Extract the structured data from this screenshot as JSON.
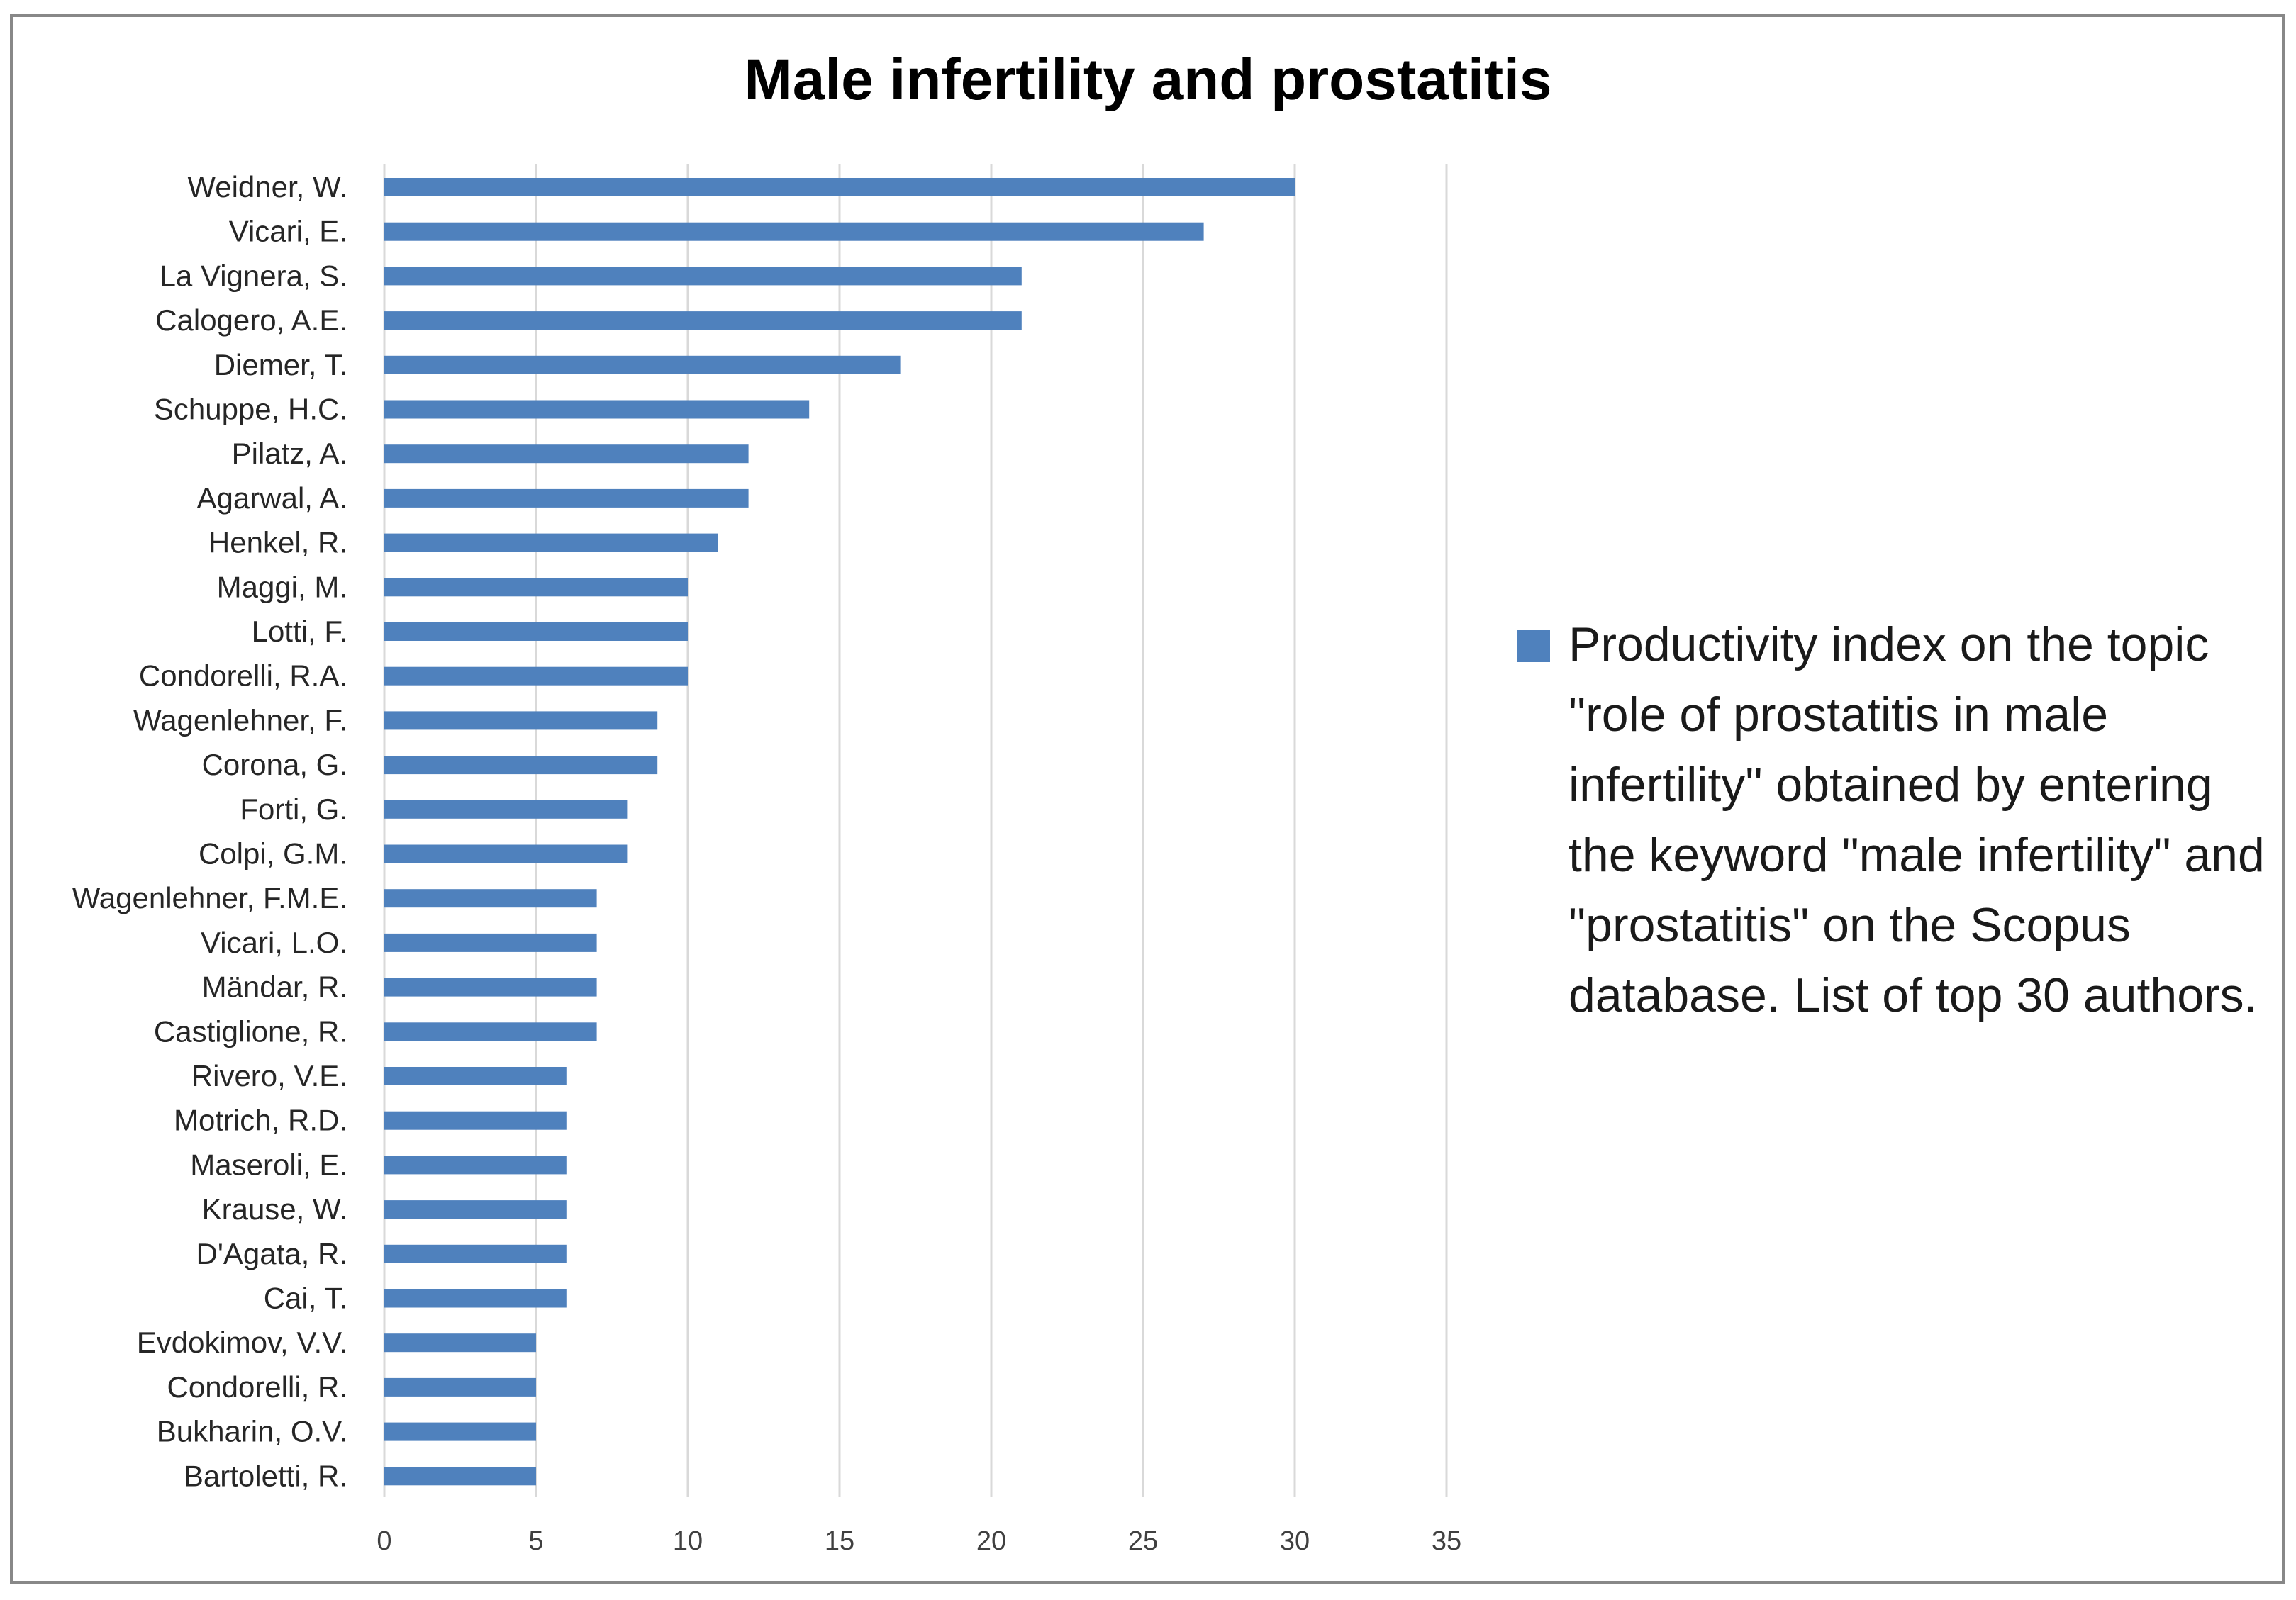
{
  "chart_data": {
    "type": "bar",
    "orientation": "horizontal",
    "title": "Male infertility and prostatitis",
    "categories": [
      "Weidner, W.",
      "Vicari, E.",
      "La Vignera, S.",
      "Calogero, A.E.",
      "Diemer, T.",
      "Schuppe, H.C.",
      "Pilatz, A.",
      "Agarwal, A.",
      "Henkel, R.",
      "Maggi, M.",
      "Lotti, F.",
      "Condorelli, R.A.",
      "Wagenlehner, F.",
      "Corona, G.",
      "Forti, G.",
      "Colpi, G.M.",
      "Wagenlehner, F.M.E.",
      "Vicari, L.O.",
      "Mändar, R.",
      "Castiglione, R.",
      "Rivero, V.E.",
      "Motrich, R.D.",
      "Maseroli, E.",
      "Krause, W.",
      "D'Agata, R.",
      "Cai, T.",
      "Evdokimov, V.V.",
      "Condorelli, R.",
      "Bukharin, O.V.",
      "Bartoletti, R."
    ],
    "values": [
      30,
      27,
      21,
      21,
      17,
      14,
      12,
      12,
      11,
      10,
      10,
      10,
      9,
      9,
      8,
      8,
      7,
      7,
      7,
      7,
      6,
      6,
      6,
      6,
      6,
      6,
      5,
      5,
      5,
      5
    ],
    "series_name": "Productivity index on the topic \"role of prostatitis in male infertility\" obtained by entering the keyword \"male infertility\" and \"prostatitis\" on the Scopus database. List of top 30 authors.",
    "xlim": [
      0,
      35
    ],
    "xticks": [
      0,
      5,
      10,
      15,
      20,
      25,
      30,
      35
    ],
    "xlabel": "",
    "ylabel": "",
    "grid": "vertical",
    "legend_position": "right",
    "bar_color": "#4f81bd"
  }
}
